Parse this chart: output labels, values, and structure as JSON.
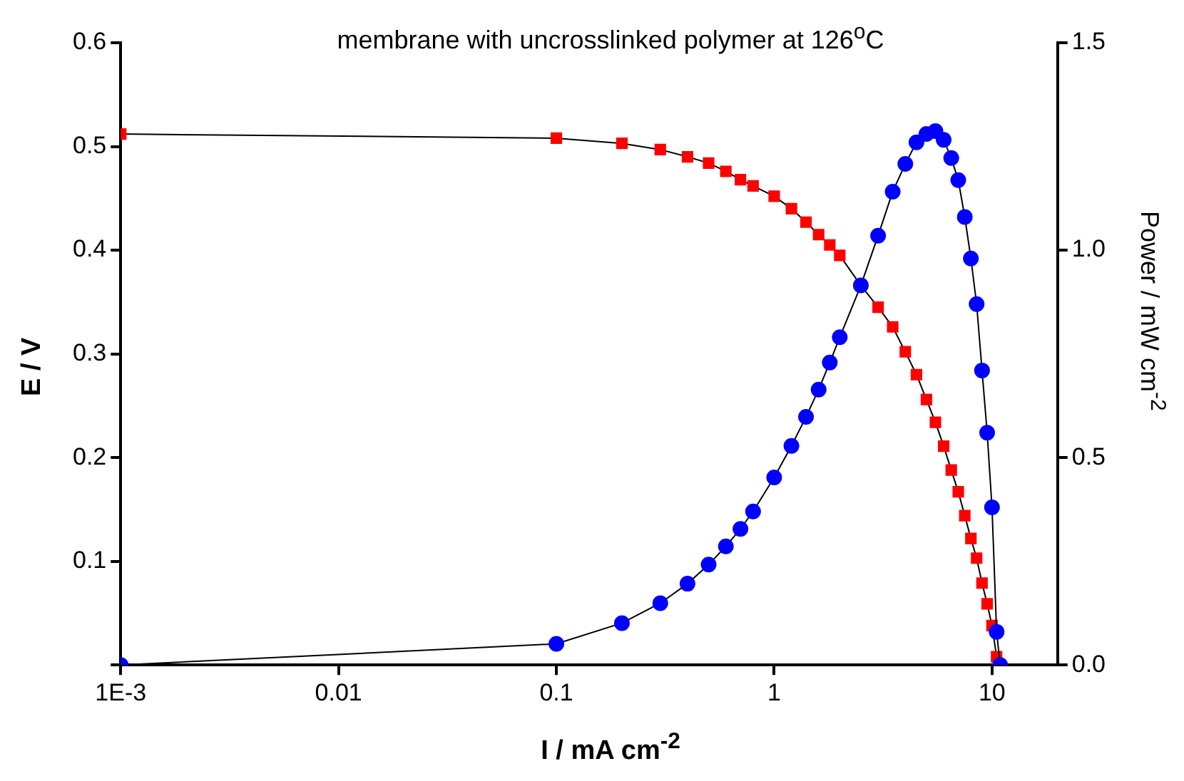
{
  "chart_data": {
    "type": "line",
    "title": "membrane with uncrosslinked polymer at 126$^{o}$C",
    "xlabel": "I / mA cm$^{-2}$",
    "ylabel": "E / V",
    "y2label": "Power / mW cm$^{-2}$",
    "x": [
      0.001,
      0.1,
      0.2,
      0.3,
      0.4,
      0.5,
      0.6,
      0.7,
      0.8,
      1,
      1.2,
      1.4,
      1.6,
      1.8,
      2,
      2.5,
      3,
      3.5,
      4,
      4.5,
      5,
      5.5,
      6,
      6.5,
      7,
      7.5,
      8,
      8.5,
      9,
      9.5,
      10,
      10.5,
      10.9
    ],
    "series": [
      {
        "color": "#ff0000",
        "marker": "square",
        "values": [
          0.512,
          0.508,
          0.503,
          0.497,
          0.49,
          0.484,
          0.476,
          0.468,
          0.462,
          0.452,
          0.44,
          0.427,
          0.415,
          0.405,
          0.395,
          0.366,
          0.345,
          0.326,
          0.302,
          0.28,
          0.256,
          0.234,
          0.211,
          0.188,
          0.167,
          0.144,
          0.122,
          0.103,
          0.079,
          0.059,
          0.038,
          0.008,
          0
        ]
      },
      {
        "color": "#0000ff",
        "marker": "circle",
        "axis": "y2",
        "values": [
          0,
          0.051,
          0.101,
          0.149,
          0.196,
          0.242,
          0.286,
          0.328,
          0.37,
          0.452,
          0.528,
          0.598,
          0.664,
          0.729,
          0.79,
          0.915,
          1.035,
          1.141,
          1.208,
          1.26,
          1.28,
          1.287,
          1.266,
          1.222,
          1.169,
          1.08,
          0.98,
          0.87,
          0.71,
          0.56,
          0.38,
          0.08,
          0
        ]
      }
    ],
    "log": "x",
    "xlim": [
      0.001,
      20
    ],
    "xticks": [
      {
        "value": 0.001,
        "label": "1E-3"
      },
      0.01,
      0.1,
      1,
      10
    ],
    "ylim": [
      0,
      0.6
    ],
    "yticks": [
      {
        "value": 0,
        "label": null
      },
      0.1,
      0.2,
      0.3,
      0.4,
      0.5,
      0.6
    ],
    "y2lim": [
      0,
      1.5
    ],
    "y2ticks": [
      {
        "value": 0,
        "label": "0.0"
      },
      0.5,
      {
        "value": 1,
        "label": "1.0"
      },
      1.5
    ],
    "grid": false,
    "legend": false
  }
}
